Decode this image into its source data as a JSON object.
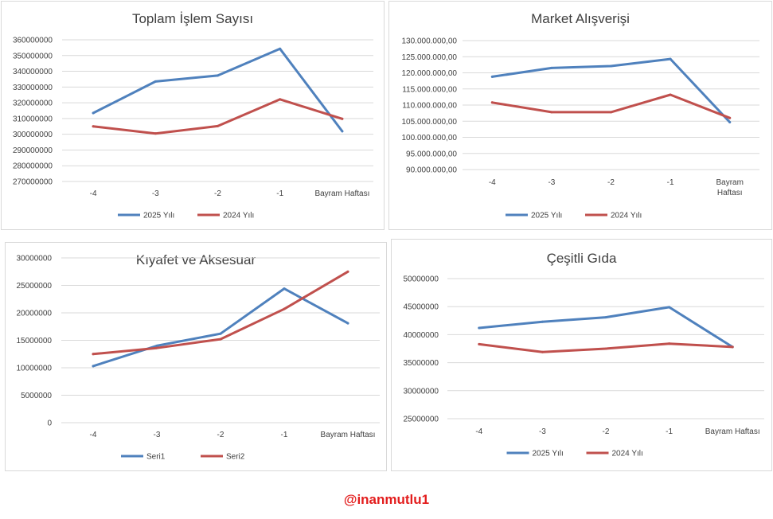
{
  "colors": {
    "series1": "#4f81bd",
    "series2": "#c0504d"
  },
  "credit": "@inanmutlu1",
  "chart_data": [
    {
      "type": "line",
      "title": "Toplam İşlem Sayısı",
      "categories": [
        "-4",
        "-3",
        "-2",
        "-1",
        "Bayram Haftası"
      ],
      "series": [
        {
          "name": "2025 Yılı",
          "values": [
            313500000,
            333500000,
            337300000,
            354300000,
            301900000
          ]
        },
        {
          "name": "2024 Yılı",
          "values": [
            305000000,
            300500000,
            305200000,
            322200000,
            309800000
          ]
        }
      ],
      "ylim": [
        270000000,
        360000000
      ],
      "yticks": [
        {
          "value": 360000000,
          "label": "360000000"
        },
        {
          "value": 350000000,
          "label": "350000000"
        },
        {
          "value": 340000000,
          "label": "340000000"
        },
        {
          "value": 330000000,
          "label": "330000000"
        },
        {
          "value": 320000000,
          "label": "320000000"
        },
        {
          "value": 310000000,
          "label": "310000000"
        },
        {
          "value": 300000000,
          "label": "300000000"
        },
        {
          "value": 290000000,
          "label": "290000000"
        },
        {
          "value": 280000000,
          "label": "280000000"
        },
        {
          "value": 270000000,
          "label": "270000000"
        }
      ],
      "grid": true,
      "legend": "bottom"
    },
    {
      "type": "line",
      "title": "Market Alışverişi",
      "categories": [
        "-4",
        "-3",
        "-2",
        "-1",
        "Bayram Haftası"
      ],
      "series": [
        {
          "name": "2025 Yılı",
          "values": [
            118800000,
            121500000,
            122100000,
            124300000,
            104700000
          ]
        },
        {
          "name": "2024 Yılı",
          "values": [
            110800000,
            107800000,
            107800000,
            113200000,
            106000000
          ]
        }
      ],
      "ylim": [
        90000000,
        130000000
      ],
      "yticks": [
        {
          "value": 130000000,
          "label": "130.000.000,00"
        },
        {
          "value": 125000000,
          "label": "125.000.000,00"
        },
        {
          "value": 120000000,
          "label": "120.000.000,00"
        },
        {
          "value": 115000000,
          "label": "115.000.000,00"
        },
        {
          "value": 110000000,
          "label": "110.000.000,00"
        },
        {
          "value": 105000000,
          "label": "105.000.000,00"
        },
        {
          "value": 100000000,
          "label": "100.000.000,00"
        },
        {
          "value": 95000000,
          "label": "95.000.000,00"
        },
        {
          "value": 90000000,
          "label": "90.000.000,00"
        }
      ],
      "grid": true,
      "legend": "bottom"
    },
    {
      "type": "line",
      "title": "Kıyafet ve Aksesuar",
      "categories": [
        "-4",
        "-3",
        "-2",
        "-1",
        "Bayram Haftası"
      ],
      "series": [
        {
          "name": "Seri1",
          "values": [
            10300000,
            14000000,
            16200000,
            24400000,
            18100000
          ]
        },
        {
          "name": "Seri2",
          "values": [
            12500000,
            13600000,
            15200000,
            20700000,
            27500000
          ]
        }
      ],
      "ylim": [
        0,
        30000000
      ],
      "yticks": [
        {
          "value": 30000000,
          "label": "30000000"
        },
        {
          "value": 25000000,
          "label": "25000000"
        },
        {
          "value": 20000000,
          "label": "20000000"
        },
        {
          "value": 15000000,
          "label": "15000000"
        },
        {
          "value": 10000000,
          "label": "10000000"
        },
        {
          "value": 5000000,
          "label": "5000000"
        },
        {
          "value": 0,
          "label": "0"
        }
      ],
      "grid": true,
      "legend": "bottom"
    },
    {
      "type": "line",
      "title": "Çeşitli Gıda",
      "categories": [
        "-4",
        "-3",
        "-2",
        "-1",
        "Bayram Haftası"
      ],
      "series": [
        {
          "name": "2025 Yılı",
          "values": [
            41200000,
            42300000,
            43100000,
            44900000,
            37800000
          ]
        },
        {
          "name": "2024 Yılı",
          "values": [
            38300000,
            36900000,
            37500000,
            38400000,
            37800000
          ]
        }
      ],
      "ylim": [
        25000000,
        50000000
      ],
      "yticks": [
        {
          "value": 50000000,
          "label": "50000000"
        },
        {
          "value": 45000000,
          "label": "45000000"
        },
        {
          "value": 40000000,
          "label": "40000000"
        },
        {
          "value": 35000000,
          "label": "35000000"
        },
        {
          "value": 30000000,
          "label": "30000000"
        },
        {
          "value": 25000000,
          "label": "25000000"
        }
      ],
      "grid": true,
      "legend": "bottom"
    }
  ]
}
